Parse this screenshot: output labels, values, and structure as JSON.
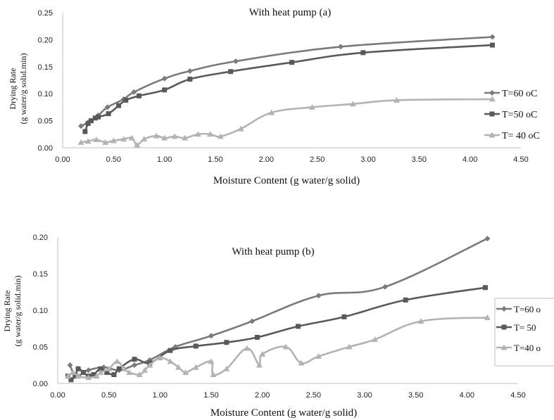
{
  "colors": {
    "t60": "#7a7a7a",
    "t50": "#595959",
    "t40": "#b3b3b3",
    "axis": "#bfbfbf"
  },
  "chart_data": [
    {
      "type": "line",
      "title": "With heat pump (a)",
      "xlabel": "Moisture Content (g water/g solid)",
      "ylabel_line1": "Drying Rate",
      "ylabel_line2": "(g water/g solid.min)",
      "xlim": [
        0,
        4.5
      ],
      "ylim": [
        0,
        0.25
      ],
      "xticks": [
        0.0,
        0.5,
        1.0,
        1.5,
        2.0,
        2.5,
        3.0,
        3.5,
        4.0,
        4.5
      ],
      "yticks": [
        0.0,
        0.05,
        0.1,
        0.15,
        0.2,
        0.25
      ],
      "x_tick_labels": [
        "0.00",
        "0.50",
        "1.00",
        "1.50",
        "2.00",
        "2.50",
        "3.00",
        "3.50",
        "4.00",
        "4.50"
      ],
      "y_tick_labels": [
        "0.00",
        "0.05",
        "0.10",
        "0.15",
        "0.20",
        "0.25"
      ],
      "grid": false,
      "legend_position": "right",
      "series": [
        {
          "name": "T=60 oC",
          "marker": "diamond",
          "color": "#7a7a7a",
          "x": [
            0.18,
            0.25,
            0.35,
            0.44,
            0.6,
            0.7,
            1.0,
            1.25,
            1.7,
            2.73,
            4.22
          ],
          "y": [
            0.04,
            0.047,
            0.06,
            0.075,
            0.09,
            0.103,
            0.128,
            0.142,
            0.16,
            0.187,
            0.205
          ]
        },
        {
          "name": "T=50 oC",
          "marker": "square",
          "color": "#595959",
          "x": [
            0.22,
            0.25,
            0.28,
            0.32,
            0.35,
            0.45,
            0.55,
            0.62,
            0.75,
            1.0,
            1.25,
            1.65,
            2.25,
            2.95,
            4.22
          ],
          "y": [
            0.03,
            0.045,
            0.05,
            0.055,
            0.057,
            0.063,
            0.078,
            0.088,
            0.096,
            0.107,
            0.127,
            0.141,
            0.158,
            0.176,
            0.19
          ]
        },
        {
          "name": "T= 40 oC",
          "marker": "triangle",
          "color": "#b3b3b3",
          "x": [
            0.18,
            0.25,
            0.33,
            0.42,
            0.5,
            0.6,
            0.68,
            0.73,
            0.8,
            0.92,
            1.0,
            1.1,
            1.2,
            1.33,
            1.45,
            1.55,
            1.75,
            2.05,
            2.45,
            2.85,
            3.28,
            4.22
          ],
          "y": [
            0.01,
            0.012,
            0.015,
            0.01,
            0.013,
            0.016,
            0.018,
            0.005,
            0.016,
            0.022,
            0.018,
            0.021,
            0.018,
            0.025,
            0.025,
            0.021,
            0.035,
            0.065,
            0.075,
            0.081,
            0.088,
            0.09
          ]
        }
      ]
    },
    {
      "type": "line",
      "title": "With heat pump (b)",
      "xlabel": "Moisture Content (g water/g solid)",
      "ylabel_line1": "Drying Rate",
      "ylabel_line2": "(g water/g solid.min)",
      "xlim": [
        0,
        4.5
      ],
      "ylim": [
        0,
        0.2
      ],
      "xticks": [
        0.0,
        0.5,
        1.0,
        1.5,
        2.0,
        2.5,
        3.0,
        3.5,
        4.0,
        4.5
      ],
      "yticks": [
        0.0,
        0.05,
        0.1,
        0.15,
        0.2
      ],
      "x_tick_labels": [
        "0.00",
        "0.50",
        "1.00",
        "1.50",
        "2.00",
        "2.50",
        "3.00",
        "3.50",
        "4.00",
        "4.50"
      ],
      "y_tick_labels": [
        "0.00",
        "0.05",
        "0.10",
        "0.15",
        "0.20"
      ],
      "grid": false,
      "legend_position": "right",
      "legend_labels": [
        "T=60 o",
        "T= 50",
        "T=40 o"
      ],
      "series": [
        {
          "name": "T=60 o",
          "marker": "diamond",
          "color": "#7a7a7a",
          "x": [
            0.12,
            0.18,
            0.3,
            0.45,
            0.6,
            0.75,
            0.9,
            1.15,
            1.5,
            1.9,
            2.55,
            3.2,
            4.2
          ],
          "y": [
            0.025,
            0.01,
            0.018,
            0.022,
            0.018,
            0.025,
            0.032,
            0.05,
            0.065,
            0.085,
            0.12,
            0.132,
            0.198
          ]
        },
        {
          "name": "T= 50",
          "marker": "square",
          "color": "#595959",
          "x": [
            0.1,
            0.13,
            0.17,
            0.2,
            0.25,
            0.3,
            0.35,
            0.42,
            0.48,
            0.55,
            0.6,
            0.75,
            0.9,
            1.1,
            1.35,
            1.65,
            1.95,
            2.35,
            2.8,
            3.4,
            4.18
          ],
          "y": [
            0.01,
            0.005,
            0.01,
            0.02,
            0.015,
            0.01,
            0.012,
            0.02,
            0.015,
            0.012,
            0.02,
            0.033,
            0.028,
            0.045,
            0.051,
            0.056,
            0.063,
            0.078,
            0.091,
            0.114,
            0.131
          ]
        },
        {
          "name": "T=40 o",
          "marker": "triangle",
          "color": "#b3b3b3",
          "x": [
            0.1,
            0.15,
            0.2,
            0.3,
            0.38,
            0.42,
            0.5,
            0.58,
            0.65,
            0.7,
            0.8,
            0.85,
            0.9,
            1.0,
            1.1,
            1.18,
            1.25,
            1.35,
            1.5,
            1.52,
            1.65,
            1.85,
            1.97,
            2.0,
            2.23,
            2.38,
            2.55,
            2.85,
            3.1,
            3.55,
            4.2
          ],
          "y": [
            0.01,
            0.015,
            0.01,
            0.008,
            0.01,
            0.015,
            0.02,
            0.03,
            0.02,
            0.015,
            0.012,
            0.018,
            0.025,
            0.035,
            0.03,
            0.022,
            0.015,
            0.022,
            0.03,
            0.012,
            0.02,
            0.048,
            0.025,
            0.04,
            0.05,
            0.028,
            0.037,
            0.05,
            0.06,
            0.085,
            0.09
          ]
        }
      ]
    }
  ]
}
